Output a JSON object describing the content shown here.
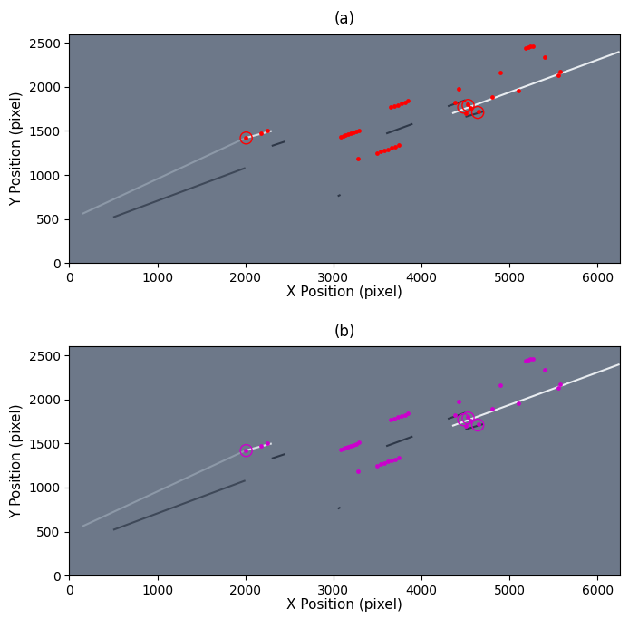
{
  "chart_data": [
    {
      "type": "scatter",
      "title": "(a)",
      "x_label": "X Position (pixel)",
      "y_label": "Y Position (pixel)",
      "xlim": [
        0,
        6250
      ],
      "ylim": [
        0,
        2600
      ],
      "xticks": [
        0,
        1000,
        2000,
        3000,
        4000,
        5000,
        6000
      ],
      "yticks": [
        0,
        500,
        1000,
        1500,
        2000,
        2500
      ],
      "series": [
        {
          "type": "line",
          "color": "#8d99a8",
          "x": [
            150,
            2000
          ],
          "y": [
            560,
            1420
          ]
        },
        {
          "type": "line",
          "color": "#d8dde3",
          "x": [
            2000,
            2300
          ],
          "y": [
            1420,
            1500
          ]
        },
        {
          "type": "line",
          "color": "#e8ecf0",
          "x": [
            4350,
            6250
          ],
          "y": [
            1700,
            2400
          ]
        },
        {
          "type": "line",
          "color": "#3e4858",
          "x": [
            500,
            2000
          ],
          "y": [
            520,
            1080
          ]
        },
        {
          "type": "line",
          "color": "#2e3848",
          "x": [
            2300,
            2450
          ],
          "y": [
            1330,
            1380
          ]
        },
        {
          "type": "line",
          "color": "#2e3848",
          "x": [
            3600,
            3900
          ],
          "y": [
            1470,
            1580
          ]
        },
        {
          "type": "line",
          "color": "#2e3848",
          "x": [
            4300,
            4500
          ],
          "y": [
            1780,
            1850
          ]
        },
        {
          "type": "line",
          "color": "#2e3848",
          "x": [
            4500,
            4700
          ],
          "y": [
            1660,
            1720
          ]
        },
        {
          "type": "line",
          "color": "#2e3848",
          "x": [
            3050,
            3080
          ],
          "y": [
            760,
            775
          ]
        },
        {
          "type": "scatter",
          "color": "#ff0000",
          "marker": "dot",
          "x": [
            3080,
            3110,
            3140,
            3170,
            3200,
            3230,
            3260,
            3290,
            3500,
            3540,
            3580,
            3620,
            3660,
            3700,
            3740,
            3650,
            3690,
            3730,
            3770,
            3810,
            3850,
            5180,
            5210,
            5240,
            5270,
            2000,
            2180,
            2250,
            4420,
            4900,
            5400,
            5550,
            5580,
            4800,
            5100,
            3280,
            4380,
            4520,
            4560,
            4650,
            4500
          ],
          "y": [
            1430,
            1442,
            1453,
            1464,
            1475,
            1486,
            1498,
            1510,
            1250,
            1264,
            1279,
            1294,
            1308,
            1322,
            1336,
            1770,
            1784,
            1798,
            1812,
            1826,
            1840,
            2440,
            2450,
            2458,
            2466,
            1420,
            1475,
            1500,
            1980,
            2160,
            2340,
            2130,
            2170,
            1890,
            1960,
            1190,
            1820,
            1800,
            1760,
            1720,
            1700
          ]
        },
        {
          "type": "scatter",
          "color": "#ff0000",
          "marker": "open",
          "x": [
            4480,
            4530,
            2010,
            4640
          ],
          "y": [
            1770,
            1790,
            1420,
            1710
          ]
        }
      ]
    },
    {
      "type": "scatter",
      "title": "(b)",
      "x_label": "X Position (pixel)",
      "y_label": "Y Position (pixel)",
      "xlim": [
        0,
        6250
      ],
      "ylim": [
        0,
        2600
      ],
      "xticks": [
        0,
        1000,
        2000,
        3000,
        4000,
        5000,
        6000
      ],
      "yticks": [
        0,
        500,
        1000,
        1500,
        2000,
        2500
      ],
      "series": [
        {
          "type": "line",
          "color": "#8d99a8",
          "x": [
            150,
            2000
          ],
          "y": [
            560,
            1420
          ]
        },
        {
          "type": "line",
          "color": "#d8dde3",
          "x": [
            2000,
            2300
          ],
          "y": [
            1420,
            1500
          ]
        },
        {
          "type": "line",
          "color": "#e8ecf0",
          "x": [
            4350,
            6250
          ],
          "y": [
            1700,
            2400
          ]
        },
        {
          "type": "line",
          "color": "#3e4858",
          "x": [
            500,
            2000
          ],
          "y": [
            520,
            1080
          ]
        },
        {
          "type": "line",
          "color": "#2e3848",
          "x": [
            2300,
            2450
          ],
          "y": [
            1330,
            1380
          ]
        },
        {
          "type": "line",
          "color": "#2e3848",
          "x": [
            3600,
            3900
          ],
          "y": [
            1470,
            1580
          ]
        },
        {
          "type": "line",
          "color": "#2e3848",
          "x": [
            4300,
            4500
          ],
          "y": [
            1780,
            1850
          ]
        },
        {
          "type": "line",
          "color": "#2e3848",
          "x": [
            4500,
            4700
          ],
          "y": [
            1660,
            1720
          ]
        },
        {
          "type": "line",
          "color": "#2e3848",
          "x": [
            3050,
            3080
          ],
          "y": [
            760,
            775
          ]
        },
        {
          "type": "scatter",
          "color": "#cc00cc",
          "marker": "dot",
          "x": [
            3080,
            3110,
            3140,
            3170,
            3200,
            3230,
            3260,
            3290,
            3500,
            3540,
            3580,
            3620,
            3660,
            3700,
            3740,
            3650,
            3690,
            3730,
            3770,
            3810,
            3850,
            5180,
            5210,
            5240,
            5270,
            2000,
            2180,
            2250,
            4420,
            4900,
            5400,
            5550,
            5580,
            4800,
            5100,
            3280,
            4380,
            4520,
            4560,
            4650,
            4500
          ],
          "y": [
            1430,
            1442,
            1453,
            1464,
            1475,
            1486,
            1498,
            1510,
            1250,
            1264,
            1279,
            1294,
            1308,
            1322,
            1336,
            1770,
            1784,
            1798,
            1812,
            1826,
            1840,
            2440,
            2450,
            2458,
            2466,
            1420,
            1475,
            1500,
            1980,
            2160,
            2340,
            2130,
            2170,
            1890,
            1960,
            1190,
            1820,
            1800,
            1760,
            1720,
            1700
          ]
        },
        {
          "type": "scatter",
          "color": "#cc00cc",
          "marker": "open",
          "x": [
            4480,
            4530,
            2010,
            4640
          ],
          "y": [
            1770,
            1790,
            1420,
            1710
          ]
        }
      ]
    }
  ]
}
